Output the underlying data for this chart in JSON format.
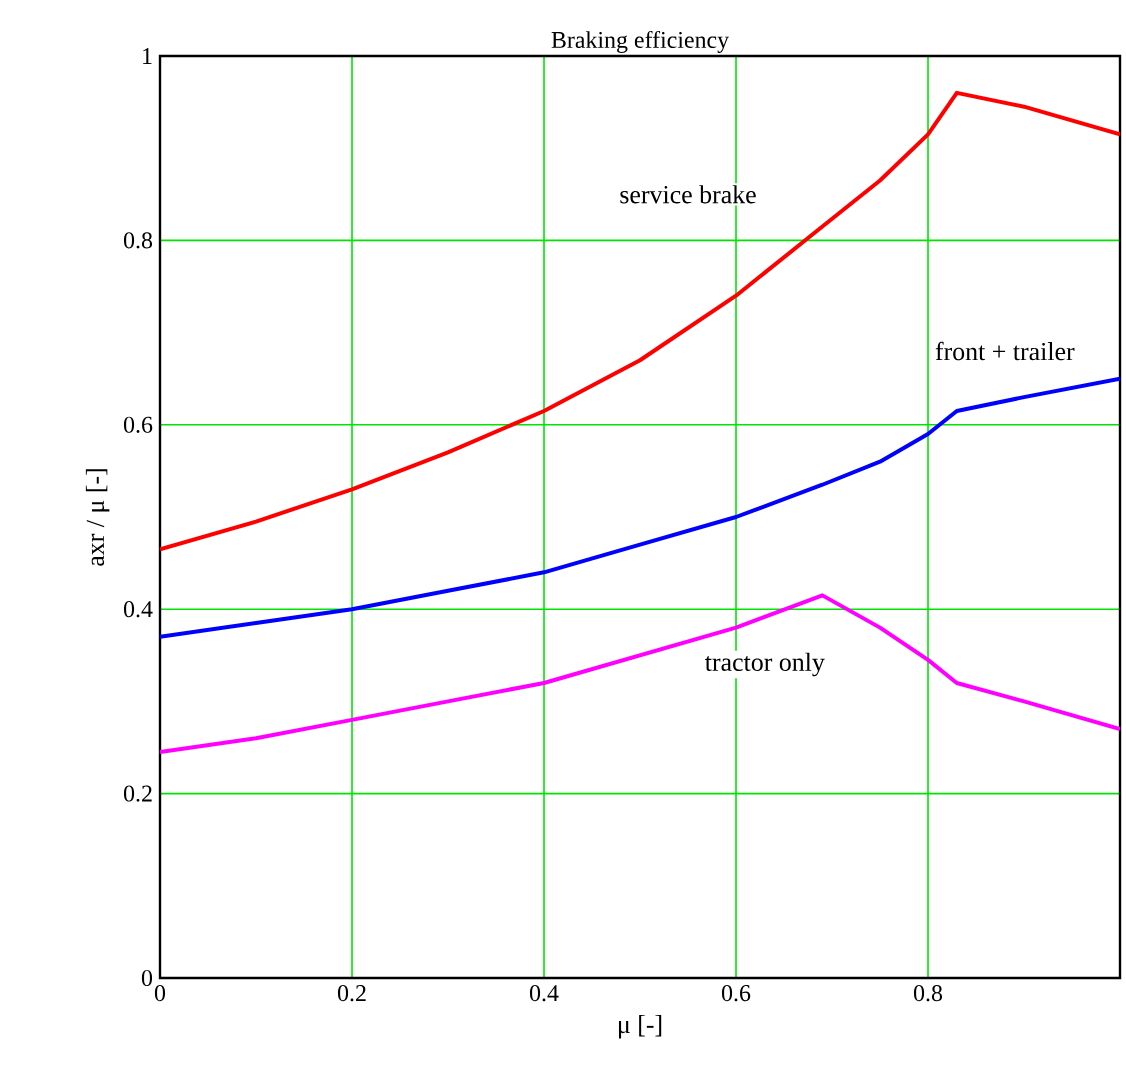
{
  "chart_data": {
    "type": "line",
    "title": "Braking efficiency",
    "xlabel": "μ [-]",
    "ylabel": "axr / μ [-]",
    "x": [
      0,
      0.1,
      0.2,
      0.3,
      0.4,
      0.5,
      0.6,
      0.69,
      0.75,
      0.8,
      0.83,
      0.9,
      1
    ],
    "series": [
      {
        "color": "#ff0000",
        "values": [
          0.465,
          0.495,
          0.53,
          0.57,
          0.615,
          0.67,
          0.74,
          0.815,
          0.865,
          0.915,
          0.96,
          0.945,
          0.915
        ]
      },
      {
        "color": "#0000ff",
        "values": [
          0.37,
          0.385,
          0.4,
          0.42,
          0.44,
          0.47,
          0.5,
          0.535,
          0.56,
          0.59,
          0.615,
          0.63,
          0.65
        ]
      },
      {
        "color": "#ff00ff",
        "values": [
          0.245,
          0.26,
          0.28,
          0.3,
          0.32,
          0.35,
          0.38,
          0.415,
          0.38,
          0.345,
          0.32,
          0.3,
          0.27
        ]
      }
    ],
    "annotations": [
      "service brake",
      "front + trailer",
      "tractor only"
    ],
    "xlim": [
      0,
      1
    ],
    "ylim": [
      0,
      1
    ],
    "xticks": [
      0,
      0.2,
      0.4,
      0.6,
      0.8
    ],
    "yticks": [
      0,
      0.2,
      0.4,
      0.6,
      0.8,
      1
    ],
    "grid": true,
    "marker": "none",
    "line_style": "solid"
  }
}
